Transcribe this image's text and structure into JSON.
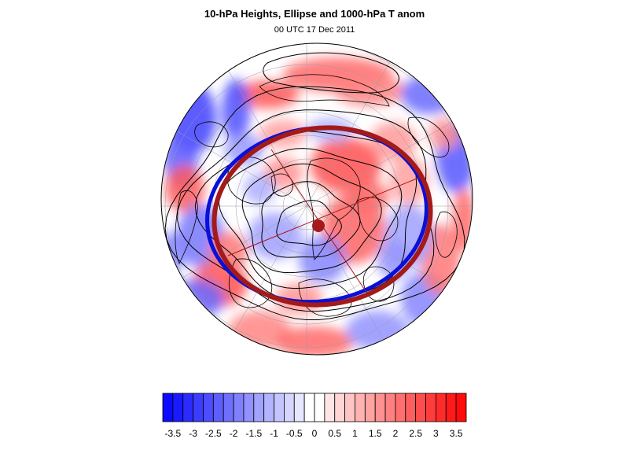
{
  "figure": {
    "title": "10-hPa Heights, Ellipse and 1000-hPa T anom",
    "subtitle": "00 UTC 17 Dec 2011"
  },
  "colors": {
    "negative_max": "#0b0bff",
    "positive_max": "#ff0b0b",
    "neutral": "#ffffff",
    "ellipse_red": "#a31a1a",
    "ellipse_blue": "#0a10d8",
    "contour": "#000000"
  },
  "colorbar": {
    "levels": [
      -3.75,
      -3.5,
      -3.25,
      -3,
      -2.75,
      -2.5,
      -2.25,
      -2,
      -1.75,
      -1.5,
      -1.25,
      -1,
      -0.75,
      -0.5,
      -0.25,
      0,
      0.25,
      0.5,
      0.75,
      1,
      1.25,
      1.5,
      1.75,
      2,
      2.25,
      2.5,
      2.75,
      3,
      3.25,
      3.5,
      3.75
    ],
    "tick_labels": [
      "-3.5",
      "-3",
      "-2.5",
      "-2",
      "-1.5",
      "-1",
      "-0.5",
      "0",
      "0.5",
      "1",
      "1.5",
      "2",
      "2.5",
      "3",
      "3.5"
    ]
  },
  "map": {
    "projection": "polar-stereographic-north",
    "field": "1000-hPa temperature anomaly",
    "contours": "10-hPa geopotential heights",
    "overlay": "vortex ellipse"
  }
}
